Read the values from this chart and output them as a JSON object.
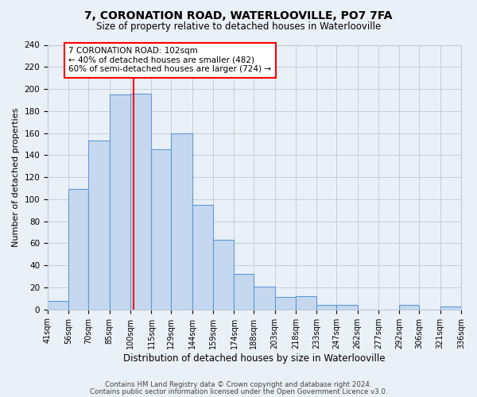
{
  "title": "7, CORONATION ROAD, WATERLOOVILLE, PO7 7FA",
  "subtitle": "Size of property relative to detached houses in Waterlooville",
  "xlabel": "Distribution of detached houses by size in Waterlooville",
  "ylabel": "Number of detached properties",
  "bins": [
    41,
    56,
    70,
    85,
    100,
    115,
    129,
    144,
    159,
    174,
    188,
    203,
    218,
    233,
    247,
    262,
    277,
    292,
    306,
    321,
    336
  ],
  "bin_labels": [
    "41sqm",
    "56sqm",
    "70sqm",
    "85sqm",
    "100sqm",
    "115sqm",
    "129sqm",
    "144sqm",
    "159sqm",
    "174sqm",
    "188sqm",
    "203sqm",
    "218sqm",
    "233sqm",
    "247sqm",
    "262sqm",
    "277sqm",
    "292sqm",
    "306sqm",
    "321sqm",
    "336sqm"
  ],
  "counts": [
    8,
    109,
    153,
    195,
    196,
    145,
    160,
    95,
    63,
    32,
    21,
    11,
    12,
    4,
    4,
    0,
    0,
    4,
    0,
    3
  ],
  "bar_color": "#c5d8f0",
  "bar_edge_color": "#5b9bd5",
  "vline_x": 102,
  "vline_color": "red",
  "annotation_line1": "7 CORONATION ROAD: 102sqm",
  "annotation_line2": "← 40% of detached houses are smaller (482)",
  "annotation_line3": "60% of semi-detached houses are larger (724) →",
  "annotation_box_edge_color": "red",
  "ylim": [
    0,
    240
  ],
  "yticks": [
    0,
    20,
    40,
    60,
    80,
    100,
    120,
    140,
    160,
    180,
    200,
    220,
    240
  ],
  "grid_color": "#c0c8d8",
  "background_color": "#eaf0f8",
  "footer_line1": "Contains HM Land Registry data © Crown copyright and database right 2024.",
  "footer_line2": "Contains public sector information licensed under the Open Government Licence v3.0."
}
